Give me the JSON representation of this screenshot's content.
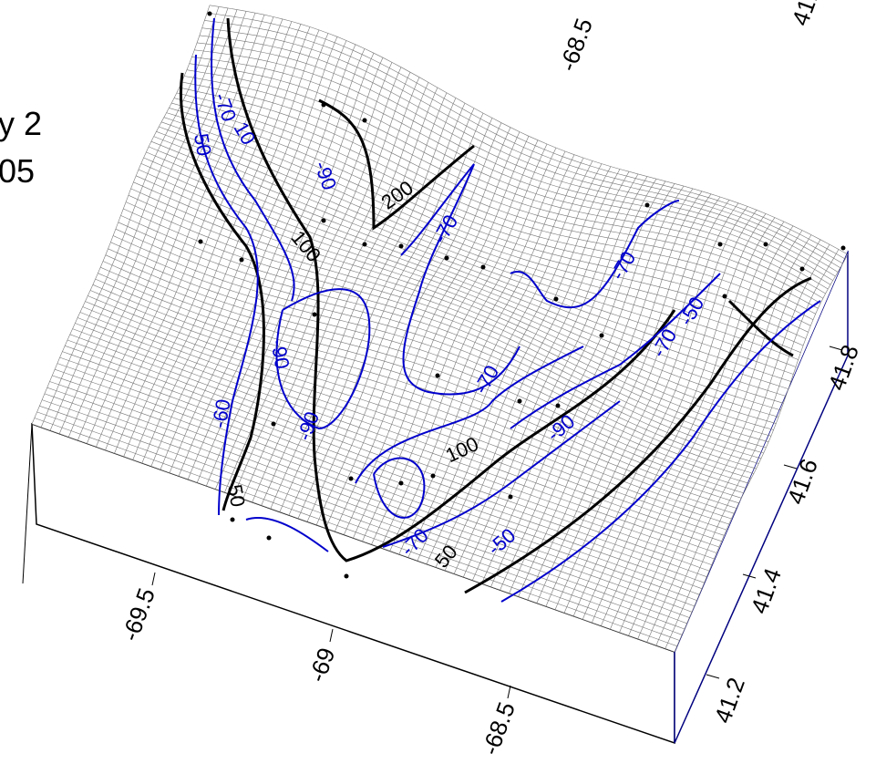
{
  "title_fragments": [
    "y 2",
    "05"
  ],
  "x_axis": {
    "tick_labels": [
      "-69.5",
      "-69",
      "-68.5"
    ],
    "top_tick_label": "-68.5"
  },
  "y_axis": {
    "tick_labels": [
      "41.2",
      "41.4",
      "41.6",
      "41.8"
    ],
    "top_tick_label": "41."
  },
  "contour_labels": [
    {
      "text": "10",
      "color": "#0000cc"
    },
    {
      "text": "-70",
      "color": "#0000cc"
    },
    {
      "text": "50",
      "color": "#0000cc"
    },
    {
      "text": "-90",
      "color": "#0000cc"
    },
    {
      "text": "200",
      "color": "#000000"
    },
    {
      "text": "100",
      "color": "#000000"
    },
    {
      "text": "-70",
      "color": "#0000cc"
    },
    {
      "text": "-70",
      "color": "#0000cc"
    },
    {
      "text": "-70",
      "color": "#0000cc"
    },
    {
      "text": "-60",
      "color": "#0000cc"
    },
    {
      "text": "-90",
      "color": "#0000cc"
    },
    {
      "text": "50",
      "color": "#000000"
    },
    {
      "text": "100",
      "color": "#000000"
    },
    {
      "text": "-90",
      "color": "#0000cc"
    },
    {
      "text": "-70",
      "color": "#0000cc"
    },
    {
      "text": "-50",
      "color": "#0000cc"
    },
    {
      "text": "-90",
      "color": "#0000cc"
    },
    {
      "text": "-70",
      "color": "#0000cc"
    },
    {
      "text": "50",
      "color": "#000000"
    },
    {
      "text": "-50",
      "color": "#0000cc"
    }
  ]
}
